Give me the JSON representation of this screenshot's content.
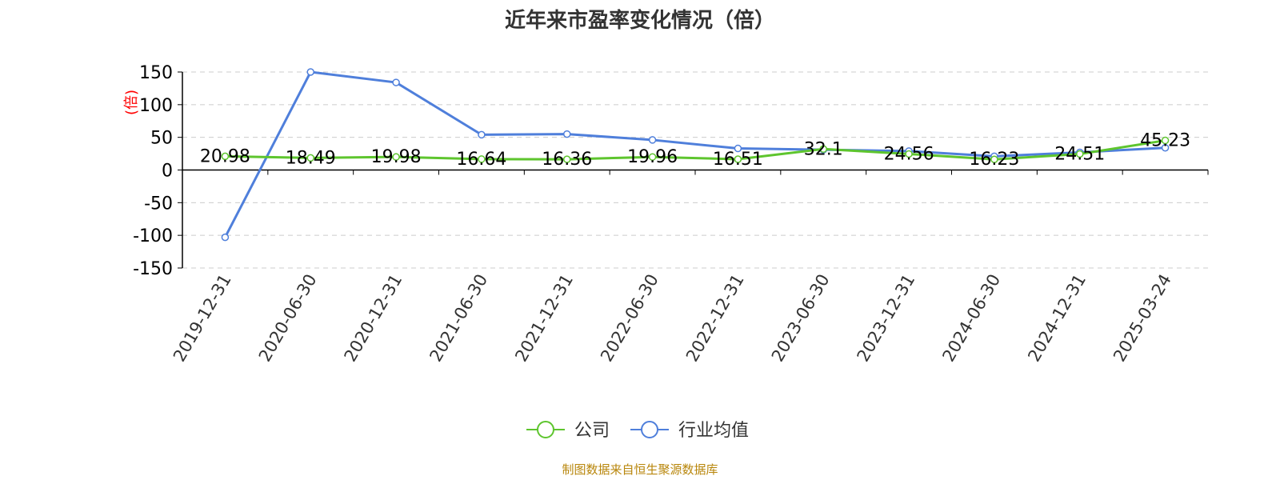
{
  "colors": {
    "company": "#5ec52e",
    "industry": "#4f7fdb",
    "grid": "#cccccc",
    "source": "#b8860b"
  },
  "chart_data": {
    "type": "line",
    "title": "近年来市盈率变化情况（倍）",
    "ylabel": "(倍)",
    "xlabel": "",
    "ylim": [
      -150,
      150
    ],
    "yticks": [
      -150,
      -100,
      -50,
      0,
      50,
      100,
      150
    ],
    "ytick_labels": [
      "-150",
      "-100",
      "-50",
      "0",
      "50",
      "100",
      "150"
    ],
    "grid": true,
    "legend_position": "bottom-center",
    "categories": [
      "2019-12-31",
      "2020-06-30",
      "2020-12-31",
      "2021-06-30",
      "2021-12-31",
      "2022-06-30",
      "2022-12-31",
      "2023-06-30",
      "2023-12-31",
      "2024-06-30",
      "2024-12-31",
      "2025-03-24"
    ],
    "series": [
      {
        "name": "公司",
        "values": [
          20.98,
          18.49,
          19.98,
          16.64,
          16.36,
          19.96,
          16.51,
          32.1,
          24.56,
          16.23,
          24.51,
          45.23
        ],
        "labels": [
          "20.98",
          "18.49",
          "19.98",
          "16.64",
          "16.36",
          "19.96",
          "16.51",
          "32.1",
          "24.56",
          "16.23",
          "24.51",
          "45.23"
        ]
      },
      {
        "name": "行业均值",
        "values": [
          -103,
          150,
          134,
          54,
          55,
          46,
          33,
          31,
          29,
          21,
          27,
          34
        ]
      }
    ]
  },
  "legend": {
    "company": "公司",
    "industry": "行业均值"
  },
  "source_text": "制图数据来自恒生聚源数据库"
}
